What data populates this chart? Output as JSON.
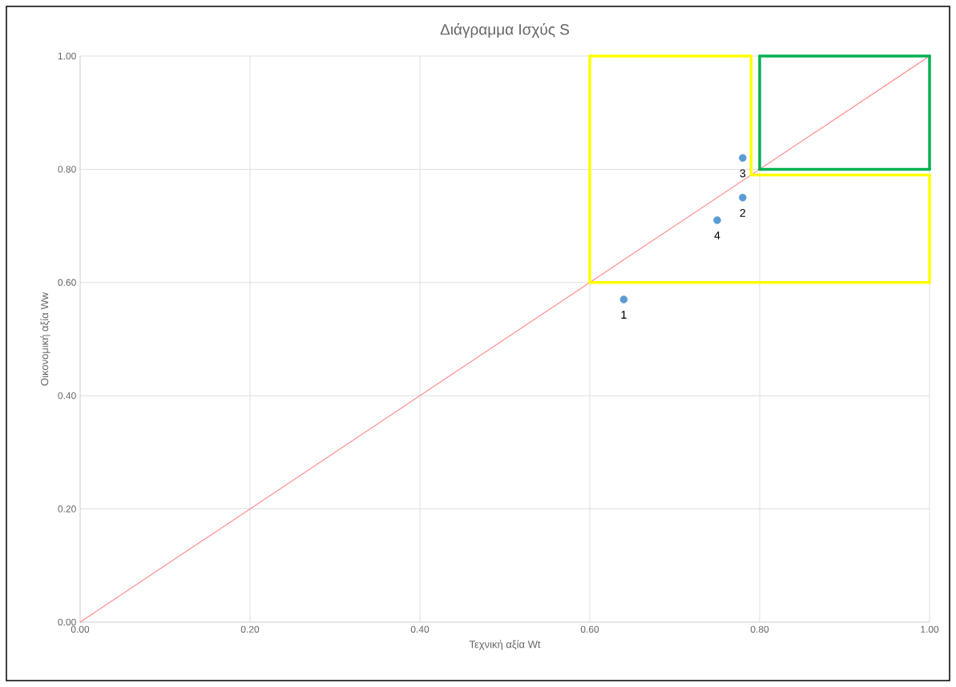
{
  "chart_data": {
    "type": "scatter",
    "title": "Διάγραμμα Ισχύς S",
    "xlabel": "Τεχνική αξία Wt",
    "ylabel": "Οικονομική αξία Ww",
    "xlim": [
      0,
      1
    ],
    "ylim": [
      0,
      1
    ],
    "xticks": [
      {
        "value": 0,
        "label": "0.00"
      },
      {
        "value": 0.2,
        "label": "0.20"
      },
      {
        "value": 0.4,
        "label": "0.40"
      },
      {
        "value": 0.6,
        "label": "0.60"
      },
      {
        "value": 0.8,
        "label": "0.80"
      },
      {
        "value": 1,
        "label": "1.00"
      }
    ],
    "yticks": [
      {
        "value": 0,
        "label": "0.00"
      },
      {
        "value": 0.2,
        "label": "0.20"
      },
      {
        "value": 0.4,
        "label": "0.40"
      },
      {
        "value": 0.6,
        "label": "0.60"
      },
      {
        "value": 0.8,
        "label": "0.80"
      },
      {
        "value": 1,
        "label": "1.00"
      }
    ],
    "grid": true,
    "series": [
      {
        "type": "line",
        "color": "#ff7c80",
        "marker": "none",
        "x": [
          0,
          1
        ],
        "values": [
          0,
          1
        ]
      },
      {
        "type": "line",
        "color": "#ffff00",
        "marker": "none",
        "x": [
          0.6,
          1.0
        ],
        "values": [
          0.6,
          0.6
        ]
      },
      {
        "type": "line",
        "color": "#ffff00",
        "marker": "none",
        "x": [
          1.0,
          1.0
        ],
        "values": [
          0.6,
          0.79
        ]
      },
      {
        "type": "line",
        "color": "#ffff00",
        "marker": "none",
        "x": [
          0.79,
          1.0
        ],
        "values": [
          0.79,
          0.79
        ]
      },
      {
        "type": "line",
        "color": "#ffff00",
        "marker": "none",
        "x": [
          0.79,
          0.79
        ],
        "values": [
          0.79,
          1.0
        ]
      },
      {
        "type": "line",
        "color": "#ffff00",
        "marker": "none",
        "x": [
          0.6,
          0.79
        ],
        "values": [
          1.0,
          1.0
        ]
      },
      {
        "type": "line",
        "color": "#ffff00",
        "marker": "none",
        "x": [
          0.6,
          0.6
        ],
        "values": [
          0.6,
          1.0
        ]
      },
      {
        "type": "line",
        "color": "#00b050",
        "marker": "none",
        "x": [
          0.8,
          1.0
        ],
        "values": [
          1.0,
          1.0
        ]
      },
      {
        "type": "line",
        "color": "#00b050",
        "marker": "none",
        "x": [
          1.0,
          1.0
        ],
        "values": [
          0.8,
          1.0
        ]
      },
      {
        "type": "line",
        "color": "#00b050",
        "marker": "none",
        "x": [
          0.8,
          1.0
        ],
        "values": [
          0.8,
          0.8
        ]
      },
      {
        "type": "line",
        "color": "#00b050",
        "marker": "none",
        "x": [
          0.8,
          0.8
        ],
        "values": [
          0.8,
          1.0
        ]
      },
      {
        "color": "#5b9bd5",
        "marker": "circle",
        "x": [
          0.64,
          0.78,
          0.78,
          0.75
        ],
        "values": [
          0.57,
          0.75,
          0.82,
          0.71
        ]
      }
    ],
    "annotations": [
      {
        "text": "1",
        "x": 0.64,
        "y": 0.57
      },
      {
        "text": "2",
        "x": 0.78,
        "y": 0.75
      },
      {
        "text": "3",
        "x": 0.78,
        "y": 0.82
      },
      {
        "text": "4",
        "x": 0.75,
        "y": 0.71
      }
    ]
  }
}
